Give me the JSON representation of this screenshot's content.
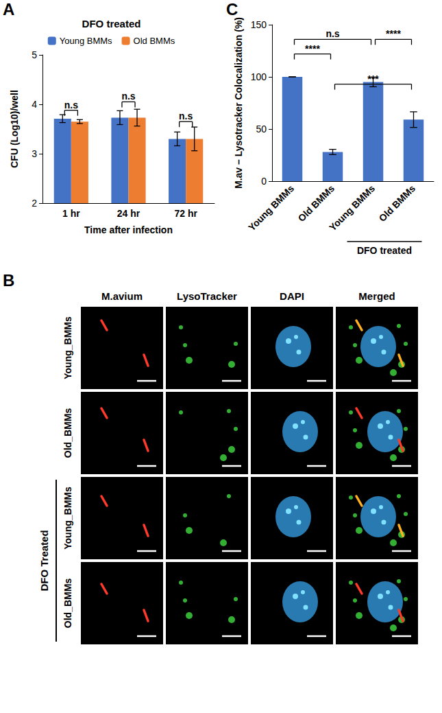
{
  "chart_data": [
    {
      "panel": "A",
      "type": "bar",
      "title": "DFO treated",
      "categories": [
        "1 hr",
        "24 hr",
        "72 hr"
      ],
      "x_label": "Time after infection",
      "y_label": "CFU (Log10)/well",
      "ylim": [
        2,
        5
      ],
      "yticks": [
        2,
        3,
        4,
        5
      ],
      "grid": false,
      "legend": "top",
      "series": [
        {
          "name": "Young BMMs",
          "color": "#4472c4",
          "values": [
            3.71,
            3.73,
            3.3
          ],
          "errors": [
            0.08,
            0.14,
            0.14
          ]
        },
        {
          "name": "Old BMMs",
          "color": "#ed7d31",
          "values": [
            3.65,
            3.73,
            3.3
          ],
          "errors": [
            0.04,
            0.17,
            0.24
          ]
        }
      ],
      "annotations": [
        {
          "category": "1 hr",
          "text": "n.s",
          "y": 3.88
        },
        {
          "category": "24 hr",
          "text": "n.s",
          "y": 4.05
        },
        {
          "category": "72 hr",
          "text": "n.s",
          "y": 3.65
        }
      ]
    },
    {
      "panel": "C",
      "type": "bar",
      "categories": [
        "Young BMMs",
        "Old BMMs",
        "Young BMMs",
        "Old BMMs"
      ],
      "values": [
        100,
        28,
        95,
        59
      ],
      "errors": [
        0,
        2.5,
        4.5,
        7.5
      ],
      "color": "#4472c4",
      "y_label": "M.av – Lysotracker Colocalization (%)",
      "ylim": [
        0,
        150
      ],
      "yticks": [
        0,
        50,
        100,
        150
      ],
      "grid": false,
      "group_label": {
        "text": "DFO treated",
        "from": 2,
        "to": 3
      },
      "annotations": [
        {
          "from": 0,
          "to": 2,
          "text": "n.s",
          "y": 136
        },
        {
          "from": 2,
          "to": 3,
          "text": "****",
          "y": 136
        },
        {
          "from": 0,
          "to": 1,
          "text": "****",
          "y": 122
        },
        {
          "from": 1,
          "to": 3,
          "text": "***",
          "y": 93
        }
      ]
    }
  ],
  "image_panel": {
    "panel": "B",
    "columns": [
      "M.avium",
      "LysoTracker",
      "DAPI",
      "Merged"
    ],
    "rows": [
      "Young_BMMs",
      "Old_BMMs",
      "Young_BMMs",
      "Old_BMMs"
    ],
    "group_label": {
      "text": "DFO Treated",
      "rows": [
        2,
        3
      ]
    }
  }
}
